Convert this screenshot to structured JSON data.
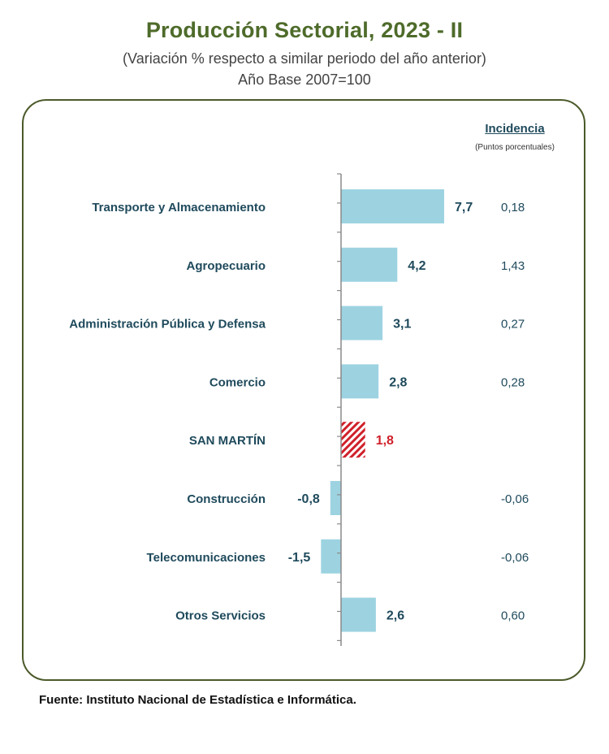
{
  "header": {
    "title": "Producción Sectorial, 2023 - II",
    "subtitle": "(Variación % respecto a similar periodo del año anterior)",
    "base": "Año Base 2007=100"
  },
  "incidence": {
    "heading": "Incidencia",
    "subheading": "(Puntos porcentuales)"
  },
  "colors": {
    "bar": "#9dd3e1",
    "highlight": "#d0202a",
    "text": "#1f4a5c",
    "axis": "#8a8a8a"
  },
  "chart_data": {
    "type": "bar",
    "orientation": "horizontal",
    "title": "Producción Sectorial, 2023 - II",
    "subtitle": "(Variación % respecto a similar periodo del año anterior)",
    "xlim": [
      -2,
      10
    ],
    "grid": false,
    "categories": [
      "Transporte y Almacenamiento",
      "Agropecuario",
      "Administración Pública y Defensa",
      "Comercio",
      "SAN MARTÍN",
      "Construcción",
      "Telecomunicaciones",
      "Otros Servicios"
    ],
    "values": [
      7.7,
      4.2,
      3.1,
      2.8,
      1.8,
      -0.8,
      -1.5,
      2.6
    ],
    "value_labels": [
      "7,7",
      "4,2",
      "3,1",
      "2,8",
      "1,8",
      "-0,8",
      "-1,5",
      "2,6"
    ],
    "incidence": [
      "0,18",
      "1,43",
      "0,27",
      "0,28",
      "",
      "-0,06",
      "-0,06",
      "0,60"
    ],
    "highlight": "SAN MARTÍN"
  },
  "footer": {
    "source": "Fuente: Instituto Nacional de Estadística e Informática."
  }
}
